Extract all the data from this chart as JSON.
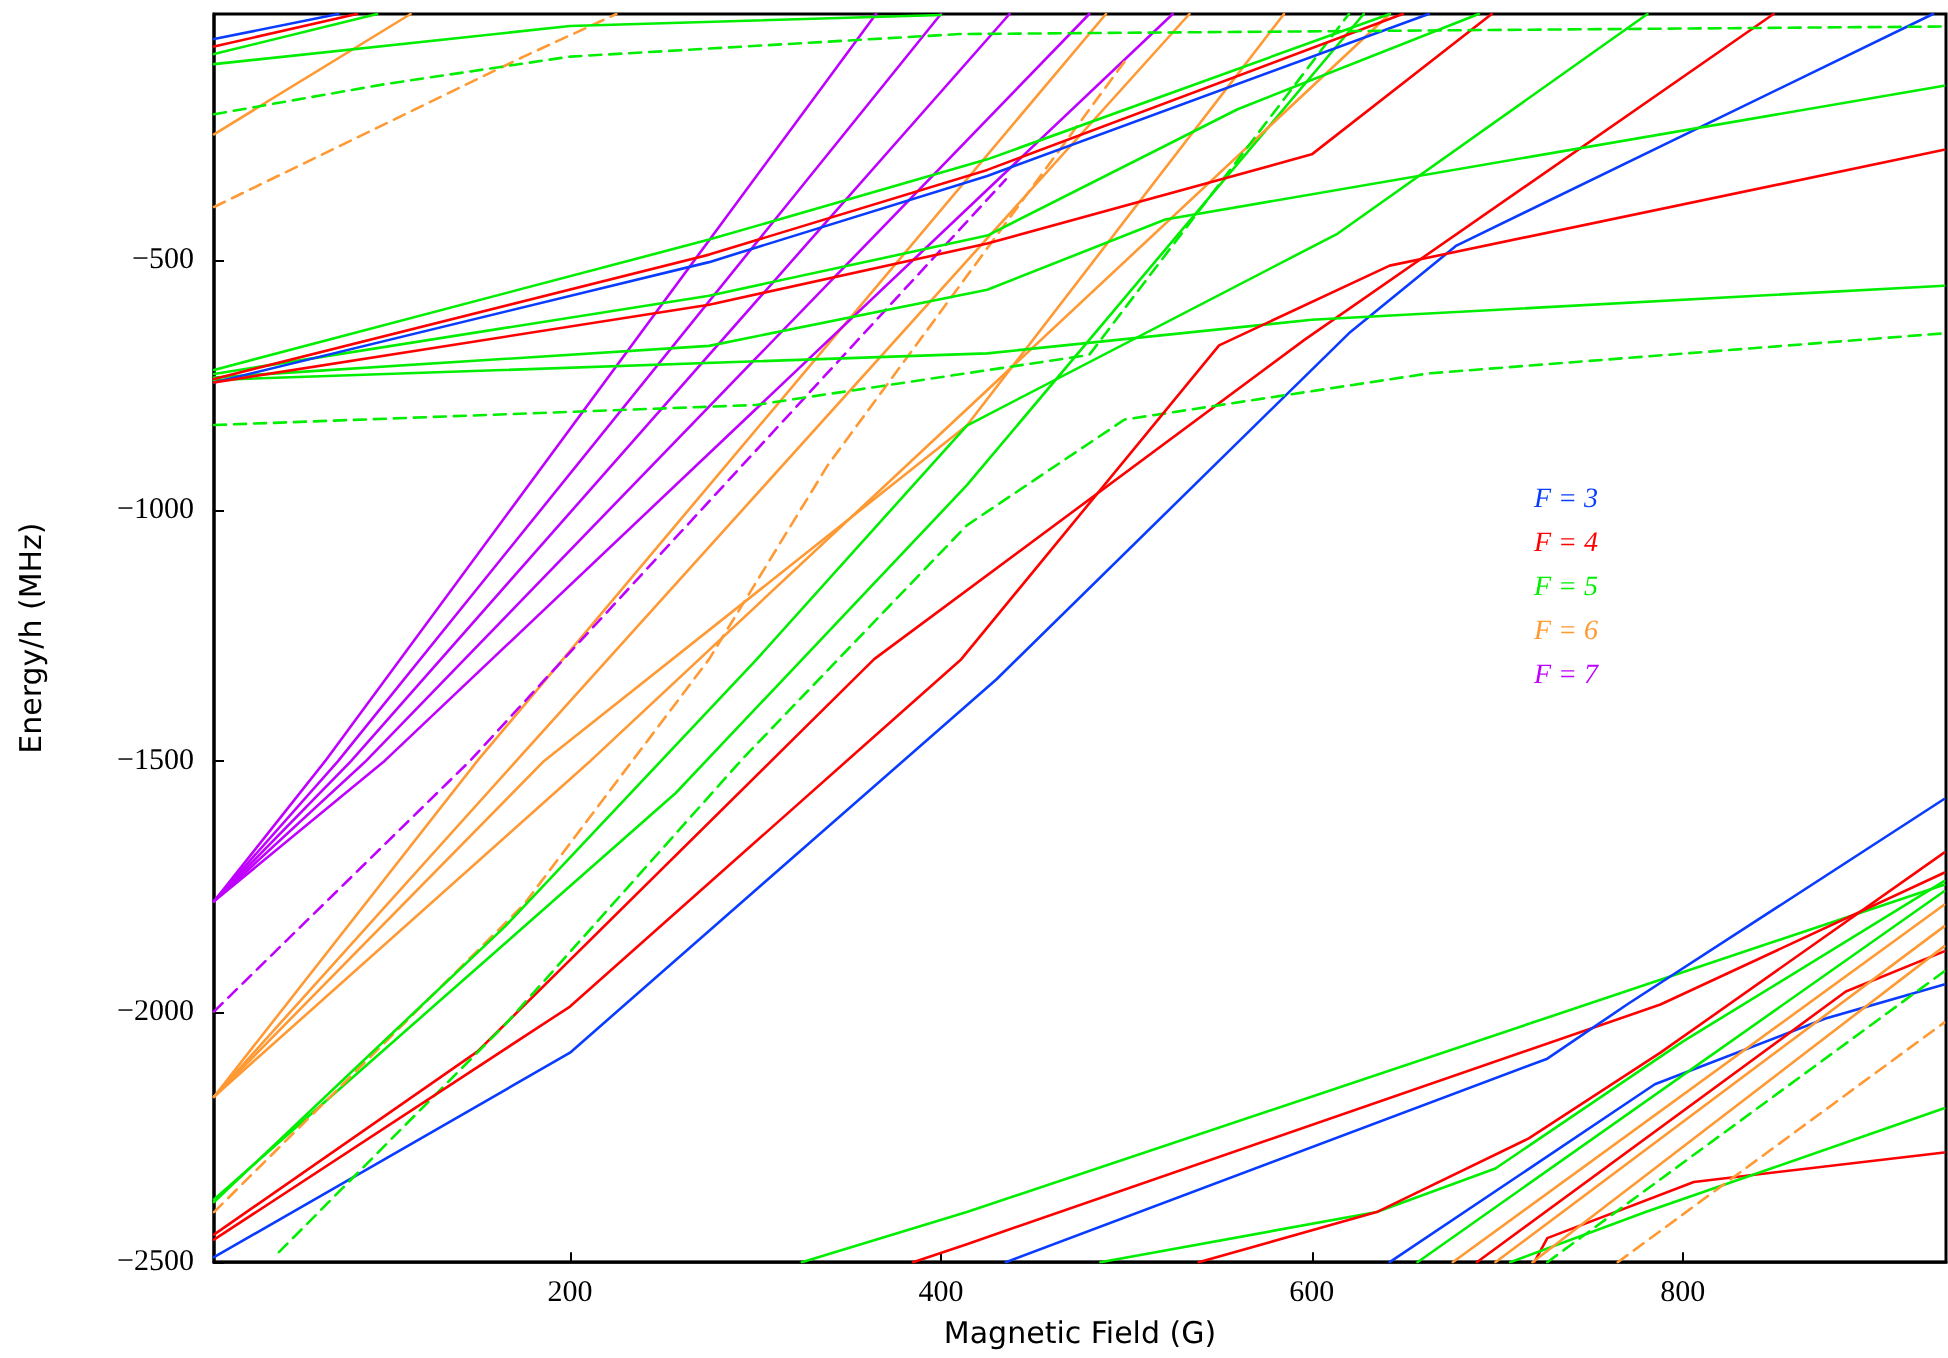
{
  "chart_data": {
    "type": "line",
    "xlabel": "Magnetic Field (G)",
    "ylabel": "Energy/h (MHz)",
    "xlim": [
      8,
      942
    ],
    "ylim": [
      -2500,
      -10
    ],
    "xticks": [
      200,
      400,
      600,
      800
    ],
    "yticks": [
      {
        "value": -2500,
        "label": "−2500"
      },
      {
        "value": -2000,
        "label": "−2000"
      },
      {
        "value": -1500,
        "label": "−1500"
      },
      {
        "value": -1000,
        "label": "−1000"
      },
      {
        "value": -500,
        "label": "−500"
      }
    ],
    "grid": false,
    "legend": "right",
    "marker": "none",
    "series": [
      {
        "name": "F = 3",
        "color": "#0a3cff",
        "x": [
          8,
          200,
          430,
          620,
          678,
          935
        ],
        "values": [
          -2490,
          -2082,
          -1337,
          -647,
          -472,
          -10
        ]
      },
      {
        "name": "F = 4",
        "color": "#ff0000",
        "x": [
          8,
          150,
          364,
          596,
          849
        ],
        "values": [
          -2445,
          -2080,
          -1297,
          -660,
          -10
        ]
      },
      {
        "name": "F = 5",
        "color": "#00ee00",
        "x": [
          8,
          257,
          414,
          628
        ],
        "values": [
          -2375,
          -1564,
          -950,
          -10
        ]
      },
      {
        "name": "F = 6",
        "color": "#ff9933",
        "x": [
          8,
          150,
          489
        ],
        "values": [
          -2170,
          -1500,
          -10
        ]
      },
      {
        "name": "F = 7",
        "color": "#bf00ff",
        "x": [
          8,
          68,
          365
        ],
        "values": [
          -1780,
          -1500,
          -10
        ]
      },
      {
        "color": "#bf00ff",
        "x": [
          8,
          75,
          400
        ],
        "values": [
          -1780,
          -1500,
          -10
        ]
      },
      {
        "color": "#bf00ff",
        "x": [
          8,
          82,
          437
        ],
        "values": [
          -1780,
          -1500,
          -10
        ]
      },
      {
        "color": "#bf00ff",
        "x": [
          8,
          90,
          480
        ],
        "values": [
          -1780,
          -1500,
          -10
        ]
      },
      {
        "color": "#bf00ff",
        "x": [
          8,
          100,
          525
        ],
        "values": [
          -1780,
          -1500,
          -10
        ]
      },
      {
        "color": "#bf00ff",
        "line_style": "dashed",
        "x": [
          8,
          146,
          435
        ],
        "values": [
          -2000,
          -1500,
          -340
        ]
      },
      {
        "color": "#ff9933",
        "x": [
          8,
          171,
          534
        ],
        "values": [
          -2170,
          -1500,
          -10
        ]
      },
      {
        "color": "#ff9933",
        "x": [
          8,
          186,
          414,
          585
        ],
        "values": [
          -2170,
          -1500,
          -831,
          -10
        ]
      },
      {
        "color": "#ff9933",
        "x": [
          8,
          211,
          642
        ],
        "values": [
          -2170,
          -1500,
          -10
        ]
      },
      {
        "color": "#ff9933",
        "line_style": "dashed",
        "x": [
          8,
          175,
          275,
          339,
          500
        ],
        "values": [
          -2400,
          -1787,
          -1297,
          -910,
          -100
        ]
      },
      {
        "color": "#ff9933",
        "x": [
          8,
          114
        ],
        "values": [
          -250,
          -10
        ]
      },
      {
        "color": "#ff9933",
        "line_style": "dashed",
        "x": [
          8,
          175,
          225
        ],
        "values": [
          -395,
          -95,
          -10
        ]
      },
      {
        "color": "#00ee00",
        "x": [
          8,
          165,
          300,
          414,
          614,
          781
        ],
        "values": [
          -2380,
          -1830,
          -1300,
          -831,
          -448,
          -10
        ]
      },
      {
        "color": "#00ee00",
        "line_style": "dashed",
        "x": [
          43,
          165,
          293,
          414,
          499,
          663,
          941
        ],
        "values": [
          -2480,
          -2026,
          -1496,
          -1030,
          -819,
          -727,
          -647
        ]
      },
      {
        "color": "#00ee00",
        "x": [
          8,
          275,
          425,
          642
        ],
        "values": [
          -720,
          -460,
          -300,
          -10
        ]
      },
      {
        "color": "#00ee00",
        "x": [
          8,
          275,
          425,
          560,
          690
        ],
        "values": [
          -728,
          -572,
          -452,
          -200,
          -10
        ]
      },
      {
        "color": "#00ee00",
        "x": [
          8,
          275,
          425,
          521,
          941
        ],
        "values": [
          -735,
          -672,
          -560,
          -420,
          -153
        ]
      },
      {
        "color": "#00ee00",
        "x": [
          8,
          425,
          600,
          941
        ],
        "values": [
          -740,
          -687,
          -620,
          -552
        ]
      },
      {
        "color": "#00ee00",
        "line_style": "dashed",
        "x": [
          8,
          300,
          480,
          620
        ],
        "values": [
          -830,
          -790,
          -690,
          -10
        ]
      },
      {
        "color": "#ff0000",
        "x": [
          8,
          275,
          425,
          649
        ],
        "values": [
          -738,
          -490,
          -321,
          -10
        ]
      },
      {
        "color": "#0a3cff",
        "x": [
          8,
          275,
          425,
          663
        ],
        "values": [
          -745,
          -505,
          -333,
          -10
        ]
      },
      {
        "color": "#ff0000",
        "x": [
          8,
          275,
          425,
          600,
          697
        ],
        "values": [
          -745,
          -590,
          -468,
          -290,
          -10
        ]
      },
      {
        "color": "#ff0000",
        "x": [
          8,
          200,
          411,
          550,
          642,
          941
        ],
        "values": [
          -2455,
          -1990,
          -1297,
          -671,
          -512,
          -281
        ]
      },
      {
        "color": "#0a3cff",
        "x": [
          8,
          75
        ],
        "values": [
          -60,
          -10
        ]
      },
      {
        "color": "#ff0000",
        "x": [
          8,
          85
        ],
        "values": [
          -75,
          -10
        ]
      },
      {
        "color": "#00ee00",
        "x": [
          8,
          96
        ],
        "values": [
          -90,
          -10
        ]
      },
      {
        "color": "#00ee00",
        "x": [
          8,
          200,
          400
        ],
        "values": [
          -110,
          -34,
          -12
        ]
      },
      {
        "color": "#00ee00",
        "line_style": "dashed",
        "x": [
          8,
          100,
          200,
          410,
          941
        ],
        "values": [
          -210,
          -150,
          -95,
          -50,
          -35
        ]
      },
      {
        "color": "#00ee00",
        "x": [
          325,
          414,
          941
        ],
        "values": [
          -2500,
          -2400,
          -1747
        ]
      },
      {
        "color": "#ff0000",
        "x": [
          385,
          414,
          788,
          941
        ],
        "values": [
          -2500,
          -2464,
          -1986,
          -1723
        ]
      },
      {
        "color": "#0a3cff",
        "x": [
          435,
          727,
          770,
          941
        ],
        "values": [
          -2500,
          -2094,
          -1986,
          -1576
        ]
      },
      {
        "color": "#00ee00",
        "x": [
          486,
          635,
          699,
          800,
          941
        ],
        "values": [
          -2500,
          -2400,
          -2313,
          -2060,
          -1740
        ]
      },
      {
        "color": "#ff0000",
        "x": [
          539,
          635,
          717,
          788,
          941
        ],
        "values": [
          -2500,
          -2400,
          -2253,
          -2082,
          -1683
        ]
      },
      {
        "color": "#0a3cff",
        "x": [
          642,
          785,
          877,
          941
        ],
        "values": [
          -2500,
          -2145,
          -2014,
          -1946
        ]
      },
      {
        "color": "#ff0000",
        "x": [
          720,
          727,
          806,
          941
        ],
        "values": [
          -2500,
          -2452,
          -2340,
          -2281
        ]
      },
      {
        "color": "#ff0000",
        "x": [
          689,
          888,
          941
        ],
        "values": [
          -2500,
          -1960,
          -1880
        ]
      },
      {
        "color": "#00ee00",
        "x": [
          707,
          780,
          941
        ],
        "values": [
          -2500,
          -2400,
          -2193
        ]
      },
      {
        "color": "#00ee00",
        "x": [
          657,
          941
        ],
        "values": [
          -2500,
          -1760
        ]
      },
      {
        "color": "#ff9933",
        "x": [
          676,
          941
        ],
        "values": [
          -2500,
          -1787
        ]
      },
      {
        "color": "#ff9933",
        "x": [
          699,
          941
        ],
        "values": [
          -2500,
          -1830
        ]
      },
      {
        "color": "#ff9933",
        "x": [
          719,
          941
        ],
        "values": [
          -2500,
          -1870
        ]
      },
      {
        "color": "#ff9933",
        "line_style": "dashed",
        "x": [
          765,
          941
        ],
        "values": [
          -2500,
          -2022
        ]
      },
      {
        "color": "#00ee00",
        "line_style": "dashed",
        "x": [
          727,
          941
        ],
        "values": [
          -2500,
          -1920
        ]
      }
    ]
  }
}
